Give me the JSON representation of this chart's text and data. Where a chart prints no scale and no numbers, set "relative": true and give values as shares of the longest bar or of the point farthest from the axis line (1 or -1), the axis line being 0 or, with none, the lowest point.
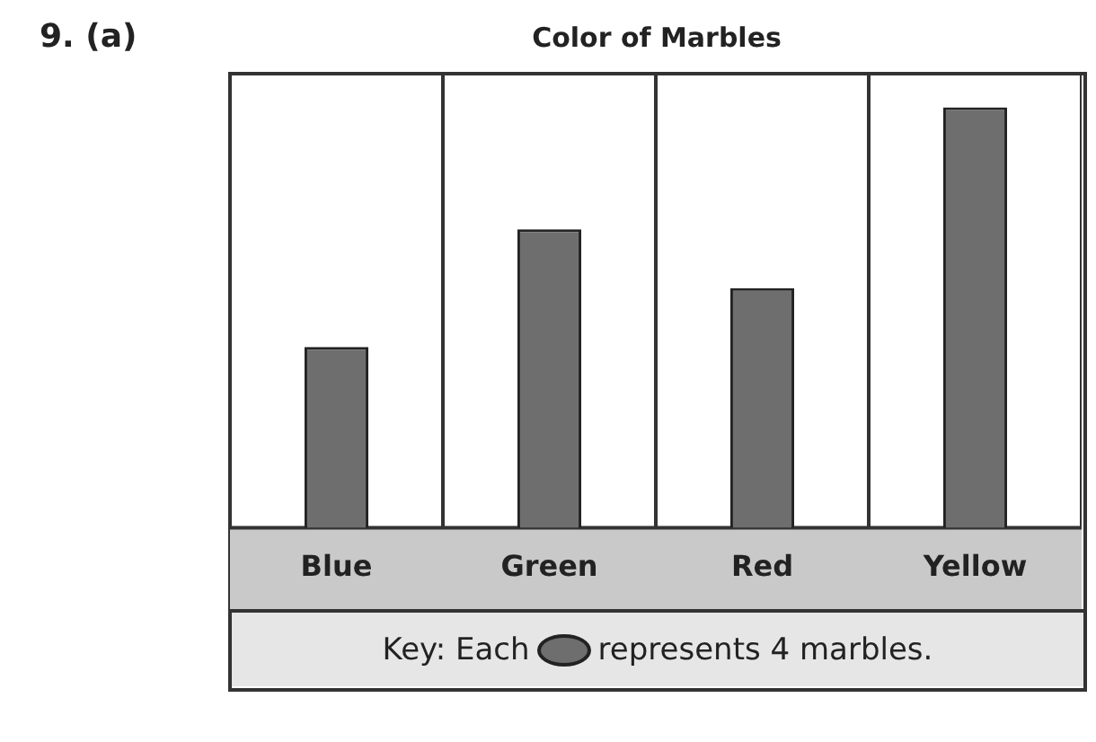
{
  "chart_data": {
    "type": "bar",
    "title": "Color of Marbles",
    "categories": [
      "Blue",
      "Green",
      "Red",
      "Yellow"
    ],
    "values": [
      0.43,
      0.71,
      0.57,
      1
    ],
    "color": "#6e6e6e",
    "relative": true,
    "grid": "x",
    "legend": false,
    "annotations": [
      "9. (a)",
      "Key: Each represents 4 marbles."
    ]
  }
}
